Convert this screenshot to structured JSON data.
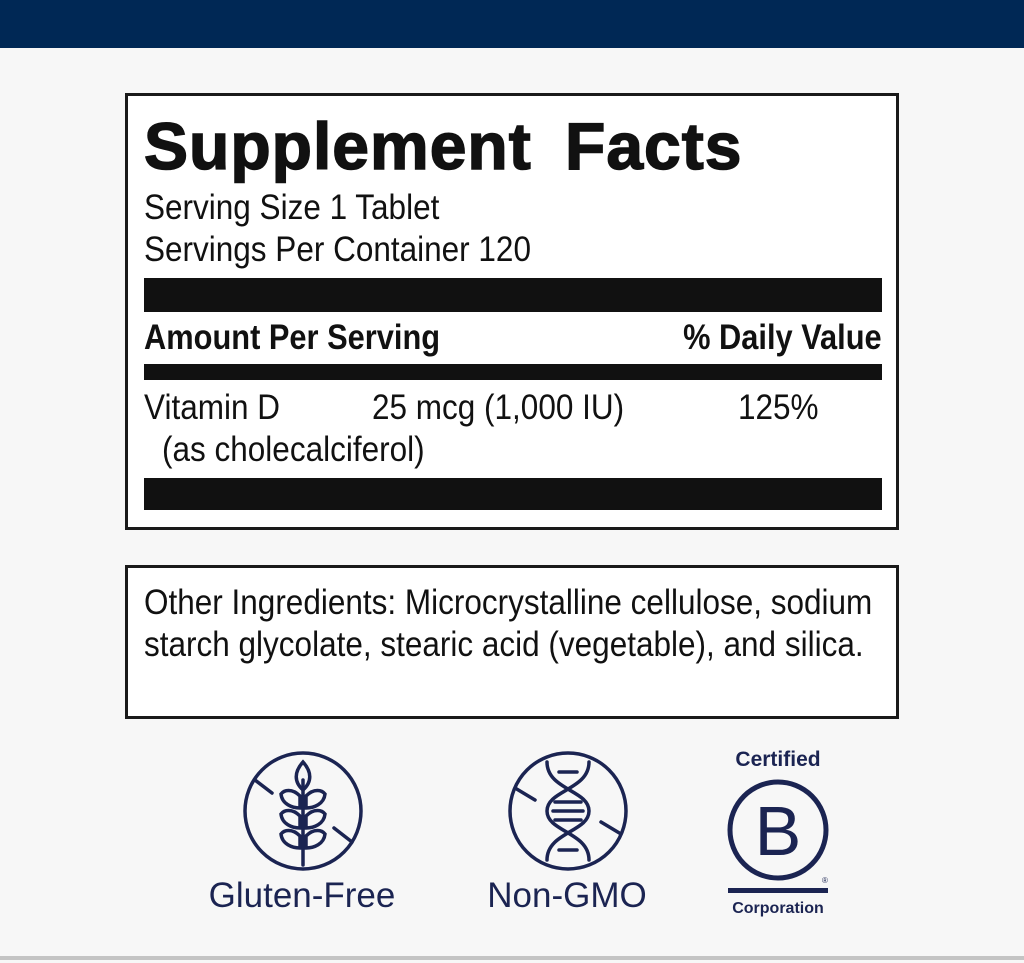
{
  "header": {
    "color": "#002855"
  },
  "facts": {
    "title": "Supplement Facts",
    "serving_size": "Serving Size 1 Tablet",
    "servings_per_container": "Servings Per Container 120",
    "amount_header": "Amount Per Serving",
    "dv_header": "% Daily Value",
    "rows": [
      {
        "name": "Vitamin D",
        "amount": "25 mcg (1,000 IU)",
        "dv": "125%",
        "sub": "(as cholecalciferol)"
      }
    ]
  },
  "other_ingredients": "Other Ingredients: Microcrystalline cellulose, sodium starch glycolate, stearic acid (vegetable), and silica.",
  "badges": [
    {
      "icon": "gluten-free-wheat-icon",
      "label": "Gluten-Free"
    },
    {
      "icon": "non-gmo-dna-icon",
      "label": "Non-GMO"
    },
    {
      "icon": "b-corp-logo",
      "top": "Certified",
      "bottom": "Corporation",
      "mark": "®"
    }
  ],
  "badge_color": "#1b2452"
}
